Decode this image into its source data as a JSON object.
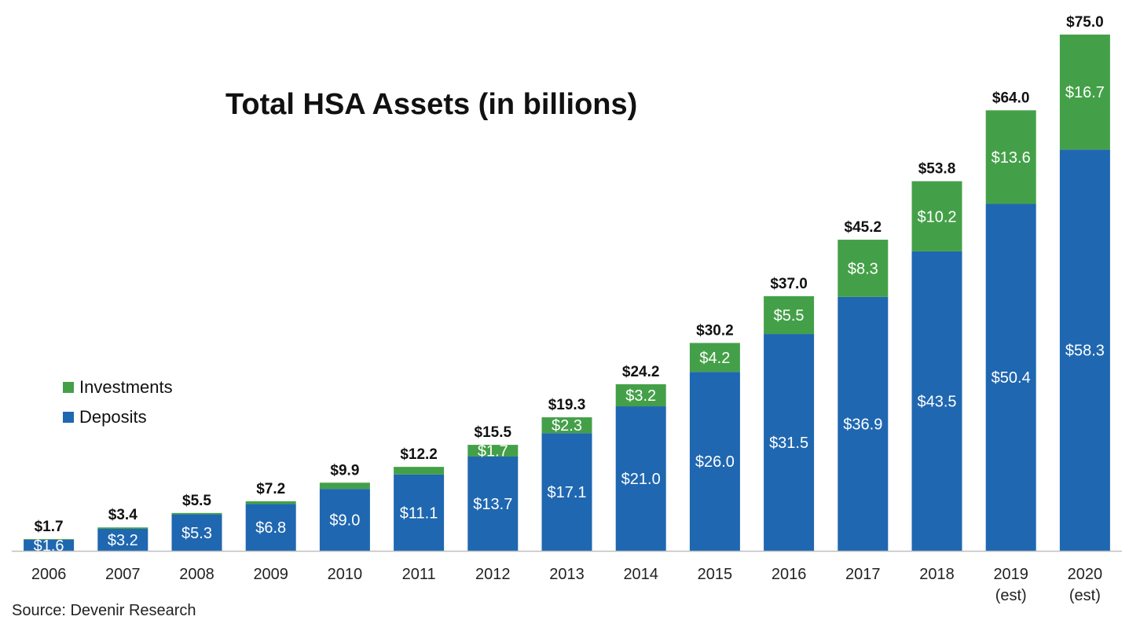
{
  "chart_data": {
    "type": "bar",
    "stacked": true,
    "title": "Total HSA Assets (in billions)",
    "categories": [
      "2006",
      "2007",
      "2008",
      "2009",
      "2010",
      "2011",
      "2012",
      "2013",
      "2014",
      "2015",
      "2016",
      "2017",
      "2018",
      "2019\n(est)",
      "2020\n(est)"
    ],
    "series": [
      {
        "name": "Deposits",
        "color": "#1f67b0",
        "values": [
          1.6,
          3.2,
          5.3,
          6.8,
          9.0,
          11.1,
          13.7,
          17.1,
          21.0,
          26.0,
          31.5,
          36.9,
          43.5,
          50.4,
          58.3
        ],
        "labels": [
          "$1.6",
          "$3.2",
          "$5.3",
          "$6.8",
          "$9.0",
          "$11.1",
          "$13.7",
          "$17.1",
          "$21.0",
          "$26.0",
          "$31.5",
          "$36.9",
          "$43.5",
          "$50.4",
          "$58.3"
        ]
      },
      {
        "name": "Investments",
        "color": "#44a048",
        "values": [
          0.1,
          0.2,
          0.2,
          0.4,
          0.9,
          1.1,
          1.7,
          2.3,
          3.2,
          4.2,
          5.5,
          8.3,
          10.2,
          13.6,
          16.7
        ],
        "labels": [
          "",
          "",
          "",
          "",
          "",
          "",
          "$1.7",
          "$2.3",
          "$3.2",
          "$4.2",
          "$5.5",
          "$8.3",
          "$10.2",
          "$13.6",
          "$16.7"
        ]
      }
    ],
    "totals": [
      "$1.7",
      "$3.4",
      "$5.5",
      "$7.2",
      "$9.9",
      "$12.2",
      "$15.5",
      "$19.3",
      "$24.2",
      "$30.2",
      "$37.0",
      "$45.2",
      "$53.8",
      "$64.0",
      "$75.0"
    ],
    "ylim": [
      0,
      75
    ],
    "grid": false,
    "legend_position": "left"
  },
  "source": "Source: Devenir Research"
}
